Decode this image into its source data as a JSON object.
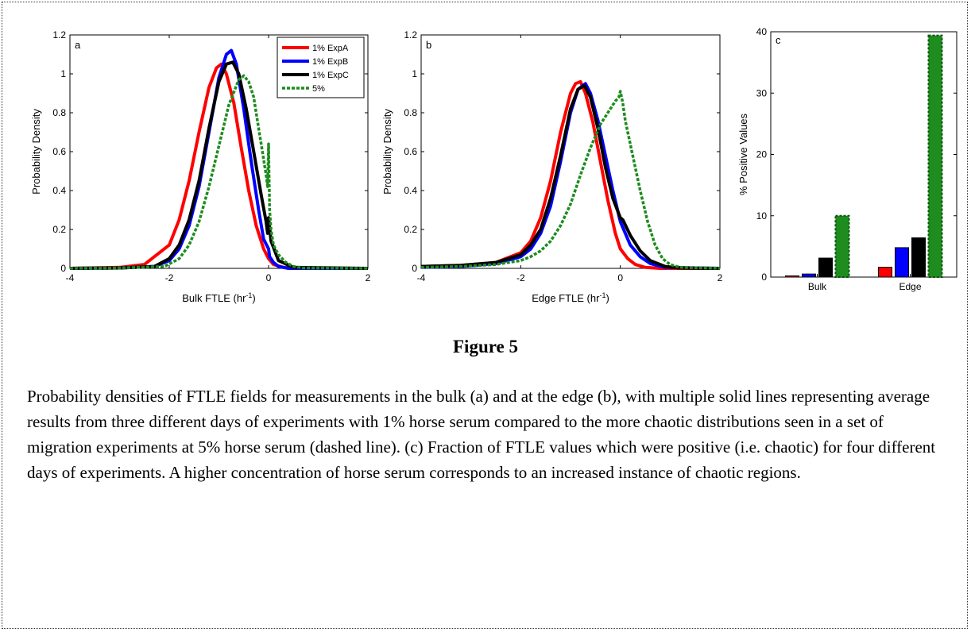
{
  "figure_title": "Figure 5",
  "caption": "Probability densities of FTLE fields for measurements in the bulk (a) and at the edge (b), with multiple solid lines representing average results from three different days of experiments with 1% horse serum compared to the more chaotic distributions seen in a set of migration experiments at 5% horse serum (dashed line). (c) Fraction of FTLE values which were positive (i.e. chaotic) for four different days of experiments.  A higher concentration of horse serum corresponds to an increased instance of chaotic regions.",
  "chart_data": [
    {
      "type": "line",
      "panel_label": "a",
      "xlabel": "Bulk FTLE (hr",
      "xlabel_sup": "-1",
      "xlabel_end": ")",
      "ylabel": "Probability Density",
      "xlim": [
        -4,
        2
      ],
      "ylim": [
        0,
        1.2
      ],
      "xticks": [
        "-4",
        "-2",
        "0",
        "2"
      ],
      "yticks": [
        "0",
        "0.2",
        "0.4",
        "0.6",
        "0.8",
        "1",
        "1.2"
      ],
      "legend_position": "top-right",
      "legend": [
        "1% ExpA",
        "1% ExpB",
        "1% ExpC",
        "5%"
      ],
      "colors": [
        "#ff0000",
        "#0000ff",
        "#000000",
        "#1e8c1e"
      ],
      "series": [
        {
          "name": "1% ExpA",
          "style": "solid",
          "x": [
            -4,
            -3,
            -2.5,
            -2.0,
            -1.8,
            -1.6,
            -1.4,
            -1.2,
            -1.05,
            -0.95,
            -0.85,
            -0.7,
            -0.55,
            -0.4,
            -0.25,
            -0.1,
            0.0,
            0.1,
            0.3,
            0.6,
            2
          ],
          "y": [
            0,
            0.005,
            0.02,
            0.12,
            0.25,
            0.45,
            0.7,
            0.93,
            1.03,
            1.05,
            1.0,
            0.85,
            0.62,
            0.4,
            0.22,
            0.1,
            0.05,
            0.02,
            0.005,
            0,
            0
          ]
        },
        {
          "name": "1% ExpB",
          "style": "solid",
          "x": [
            -4,
            -3,
            -2.3,
            -2.0,
            -1.8,
            -1.6,
            -1.4,
            -1.2,
            -1.0,
            -0.85,
            -0.75,
            -0.65,
            -0.5,
            -0.35,
            -0.2,
            -0.1,
            0.0,
            0.02,
            0.1,
            0.2,
            0.4,
            2
          ],
          "y": [
            0,
            0.002,
            0.01,
            0.04,
            0.1,
            0.22,
            0.42,
            0.7,
            0.98,
            1.1,
            1.12,
            1.05,
            0.82,
            0.55,
            0.3,
            0.15,
            0.1,
            0.06,
            0.03,
            0.01,
            0,
            0
          ]
        },
        {
          "name": "1% ExpC",
          "style": "solid",
          "x": [
            -4,
            -3,
            -2.3,
            -2.0,
            -1.8,
            -1.6,
            -1.4,
            -1.2,
            -1.0,
            -0.85,
            -0.72,
            -0.6,
            -0.45,
            -0.3,
            -0.15,
            -0.05,
            -0.02,
            0.0,
            0.05,
            0.2,
            0.5,
            2
          ],
          "y": [
            0,
            0.002,
            0.01,
            0.05,
            0.12,
            0.25,
            0.45,
            0.72,
            0.96,
            1.05,
            1.06,
            1.0,
            0.82,
            0.6,
            0.38,
            0.24,
            0.18,
            0.26,
            0.14,
            0.04,
            0.005,
            0
          ]
        },
        {
          "name": "5%",
          "style": "dashed",
          "x": [
            -4,
            -3,
            -2.1,
            -1.8,
            -1.6,
            -1.4,
            -1.2,
            -1.0,
            -0.8,
            -0.6,
            -0.5,
            -0.4,
            -0.3,
            -0.2,
            -0.1,
            -0.05,
            -0.02,
            0.0,
            0.02,
            0.05,
            0.1,
            0.2,
            0.35,
            0.5,
            0.7,
            2
          ],
          "y": [
            0,
            0.002,
            0.01,
            0.05,
            0.12,
            0.24,
            0.42,
            0.63,
            0.84,
            0.97,
            0.99,
            0.96,
            0.88,
            0.72,
            0.56,
            0.48,
            0.42,
            0.64,
            0.3,
            0.2,
            0.12,
            0.07,
            0.03,
            0.01,
            0.002,
            0
          ]
        }
      ]
    },
    {
      "type": "line",
      "panel_label": "b",
      "xlabel": "Edge FTLE (hr",
      "xlabel_sup": "-1",
      "xlabel_end": ")",
      "ylabel": "Probability Density",
      "xlim": [
        -4,
        2
      ],
      "ylim": [
        0,
        1.2
      ],
      "xticks": [
        "-4",
        "-2",
        "0",
        "2"
      ],
      "yticks": [
        "0",
        "0.2",
        "0.4",
        "0.6",
        "0.8",
        "1",
        "1.2"
      ],
      "colors": [
        "#ff0000",
        "#0000ff",
        "#000000",
        "#1e8c1e"
      ],
      "series": [
        {
          "name": "1% ExpA",
          "style": "solid",
          "x": [
            -4,
            -3.2,
            -2.5,
            -2.0,
            -1.8,
            -1.6,
            -1.4,
            -1.2,
            -1.0,
            -0.9,
            -0.8,
            -0.7,
            -0.55,
            -0.4,
            -0.25,
            -0.1,
            0.0,
            0.15,
            0.3,
            0.5,
            0.8,
            2
          ],
          "y": [
            0.01,
            0.015,
            0.03,
            0.08,
            0.14,
            0.26,
            0.45,
            0.7,
            0.9,
            0.95,
            0.96,
            0.9,
            0.75,
            0.55,
            0.35,
            0.18,
            0.1,
            0.05,
            0.02,
            0.005,
            0,
            0
          ]
        },
        {
          "name": "1% ExpB",
          "style": "solid",
          "x": [
            -4,
            -3.2,
            -2.5,
            -2.0,
            -1.8,
            -1.6,
            -1.4,
            -1.2,
            -1.0,
            -0.85,
            -0.7,
            -0.6,
            -0.45,
            -0.3,
            -0.15,
            0.0,
            0.2,
            0.4,
            0.6,
            0.9,
            2
          ],
          "y": [
            0.005,
            0.01,
            0.025,
            0.06,
            0.1,
            0.18,
            0.32,
            0.55,
            0.8,
            0.92,
            0.95,
            0.9,
            0.76,
            0.58,
            0.4,
            0.24,
            0.12,
            0.06,
            0.025,
            0.005,
            0
          ]
        },
        {
          "name": "1% ExpC",
          "style": "solid",
          "x": [
            -4,
            -3.2,
            -2.5,
            -2.0,
            -1.8,
            -1.6,
            -1.4,
            -1.2,
            -1.0,
            -0.85,
            -0.72,
            -0.6,
            -0.45,
            -0.3,
            -0.15,
            0.0,
            0.05,
            0.2,
            0.4,
            0.6,
            0.9,
            1.2,
            2
          ],
          "y": [
            0.01,
            0.015,
            0.03,
            0.07,
            0.12,
            0.2,
            0.36,
            0.58,
            0.82,
            0.92,
            0.94,
            0.88,
            0.72,
            0.52,
            0.36,
            0.26,
            0.25,
            0.17,
            0.09,
            0.04,
            0.01,
            0.002,
            0
          ]
        },
        {
          "name": "5%",
          "style": "dashed",
          "x": [
            -4,
            -3.2,
            -2.5,
            -2.0,
            -1.8,
            -1.6,
            -1.4,
            -1.2,
            -1.0,
            -0.8,
            -0.6,
            -0.4,
            -0.2,
            -0.1,
            -0.03,
            0.0,
            0.05,
            0.1,
            0.25,
            0.4,
            0.55,
            0.7,
            0.85,
            1.0,
            1.2,
            2
          ],
          "y": [
            0.005,
            0.01,
            0.02,
            0.04,
            0.06,
            0.09,
            0.14,
            0.22,
            0.33,
            0.48,
            0.62,
            0.74,
            0.82,
            0.86,
            0.88,
            0.91,
            0.85,
            0.76,
            0.58,
            0.4,
            0.24,
            0.12,
            0.05,
            0.02,
            0.005,
            0
          ]
        }
      ]
    },
    {
      "type": "bar",
      "panel_label": "c",
      "ylabel": "% Positive Values",
      "ylim": [
        0,
        40
      ],
      "yticks": [
        "0",
        "10",
        "20",
        "30",
        "40"
      ],
      "categories": [
        "Bulk",
        "Edge"
      ],
      "colors": [
        "#ff0000",
        "#0000ff",
        "#000000",
        "#1e8c1e"
      ],
      "series": [
        {
          "name": "1% ExpA",
          "style": "solid",
          "values": [
            0.2,
            1.6
          ]
        },
        {
          "name": "1% ExpB",
          "style": "solid",
          "values": [
            0.5,
            4.8
          ]
        },
        {
          "name": "1% ExpC",
          "style": "solid",
          "values": [
            3.1,
            6.4
          ]
        },
        {
          "name": "5%",
          "style": "dashed",
          "values": [
            10.0,
            39.4
          ]
        }
      ]
    }
  ]
}
